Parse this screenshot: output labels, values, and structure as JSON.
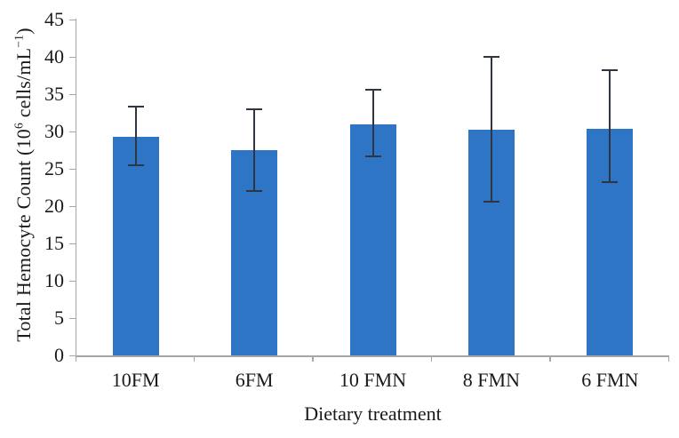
{
  "chart_data": {
    "type": "bar",
    "title": "",
    "xlabel": "Dietary treatment",
    "ylabel": "Total Hemocyte Count (10⁶ cells/mL⁻¹)",
    "ylabel_parts": {
      "pre": "Total Hemocyte Count (10",
      "sup1": "6",
      "mid": " cells/mL",
      "sup2": "−1",
      "post": ")"
    },
    "categories": [
      "10FM",
      "6FM",
      "10 FMN",
      "8 FMN",
      "6 FMN"
    ],
    "values": [
      29.3,
      27.5,
      31.0,
      30.2,
      30.4
    ],
    "error_bars": [
      {
        "low": 25.5,
        "high": 33.3
      },
      {
        "low": 22.0,
        "high": 33.0
      },
      {
        "low": 26.7,
        "high": 35.6
      },
      {
        "low": 20.6,
        "high": 40.0
      },
      {
        "low": 23.2,
        "high": 38.2
      }
    ],
    "ylim": [
      0,
      45
    ],
    "ytick_step": 5,
    "ytick_labels": [
      "0",
      "5",
      "10",
      "15",
      "20",
      "25",
      "30",
      "35",
      "40",
      "45"
    ],
    "grid": "off",
    "legend": "none",
    "colors": {
      "bar": "#2E75C6",
      "error": "#2F3642",
      "axis": "#A6A6A6",
      "text": "#1A1A1A"
    }
  }
}
